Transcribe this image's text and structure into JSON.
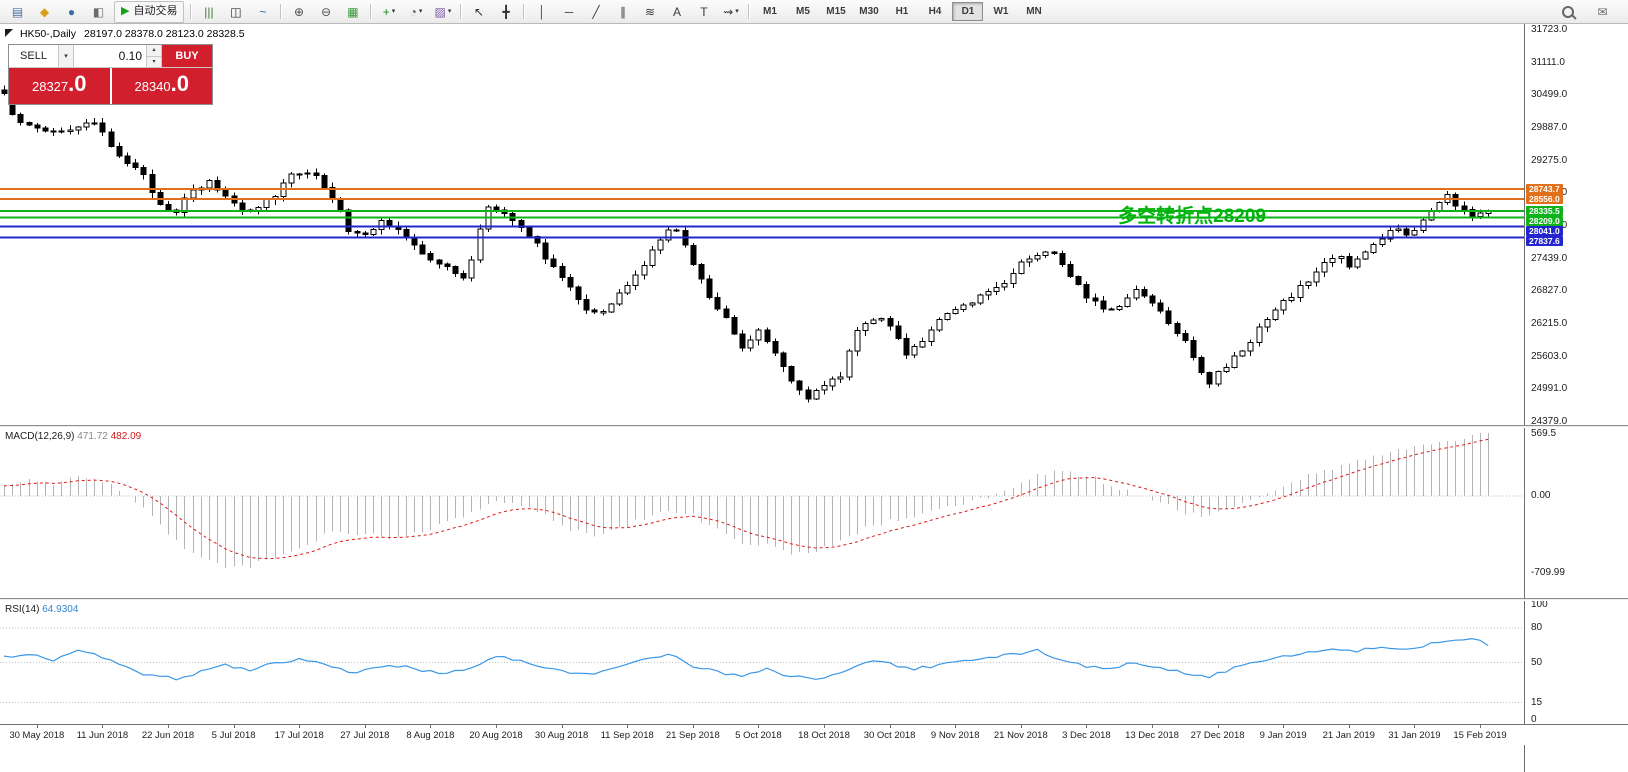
{
  "toolbar": {
    "dropdown_glyph": "▾",
    "groups": [
      {
        "name": "standard",
        "items": [
          {
            "name": "new-order-icon",
            "glyph": "▤",
            "color": "#4a6fa5"
          },
          {
            "name": "market-watch-icon",
            "glyph": "◆",
            "color": "#d9a118"
          },
          {
            "name": "navigator-icon",
            "glyph": "●",
            "color": "#3a6ea5"
          },
          {
            "name": "terminal-icon",
            "glyph": "◧",
            "color": "#6b6b6b"
          },
          {
            "name": "autotrading-button",
            "label": "自动交易",
            "glyph": "▶",
            "color": "#15a015"
          }
        ]
      },
      {
        "name": "chart-types",
        "items": [
          {
            "name": "bar-chart-icon",
            "glyph": "|||",
            "color": "#46783c"
          },
          {
            "name": "candlestick-chart-icon",
            "glyph": "◫",
            "color": "#2f2f2f"
          },
          {
            "name": "line-chart-icon",
            "glyph": "~",
            "color": "#33668c"
          }
        ]
      },
      {
        "name": "zoom",
        "items": [
          {
            "name": "zoom-in-icon",
            "glyph": "⊕",
            "color": "#4f4f4f"
          },
          {
            "name": "zoom-out-icon",
            "glyph": "⊖",
            "color": "#4f4f4f"
          },
          {
            "name": "tile-windows-icon",
            "glyph": "▦",
            "color": "#3a9a3a"
          }
        ]
      },
      {
        "name": "chart-tools",
        "items": [
          {
            "name": "indicators-icon",
            "glyph": "+",
            "color": "#1e8c1e",
            "dropdown": true
          },
          {
            "name": "periods-icon",
            "glyph": "◔",
            "color": "#4f4f4f",
            "dropdown": true
          },
          {
            "name": "templates-icon",
            "glyph": "▨",
            "color": "#7a55a0",
            "dropdown": true
          }
        ]
      },
      {
        "name": "cursor-tools",
        "items": [
          {
            "name": "cursor-icon",
            "glyph": "↖",
            "color": "#2f2f2f"
          },
          {
            "name": "crosshair-icon",
            "glyph": "╋",
            "color": "#2f2f2f"
          }
        ]
      },
      {
        "name": "drawing-tools",
        "items": [
          {
            "name": "vertical-line-icon",
            "glyph": "│",
            "color": "#3c3c3c"
          },
          {
            "name": "horizontal-line-icon",
            "glyph": "─",
            "color": "#3c3c3c"
          },
          {
            "name": "trendline-icon",
            "glyph": "╱",
            "color": "#3c3c3c"
          },
          {
            "name": "equidistant-channel-icon",
            "glyph": "∥",
            "color": "#3c3c3c"
          },
          {
            "name": "fibonacci-icon",
            "glyph": "≋",
            "color": "#3c3c3c"
          },
          {
            "name": "text-icon",
            "glyph": "A",
            "color": "#3c3c3c"
          },
          {
            "name": "text-label-icon",
            "glyph": "T",
            "color": "#3c3c3c"
          },
          {
            "name": "arrows-icon",
            "glyph": "⇝",
            "color": "#3c3c3c",
            "dropdown": true
          }
        ]
      },
      {
        "name": "timeframes",
        "timeframes": [
          "M1",
          "M5",
          "M15",
          "M30",
          "H1",
          "H4",
          "D1",
          "W1",
          "MN"
        ],
        "active": "D1"
      }
    ],
    "right_items": [
      {
        "name": "search-icon",
        "glyph": ""
      },
      {
        "name": "community-icon",
        "glyph": "✉"
      }
    ]
  },
  "chart_window": {
    "symbol_title": "HK50-,Daily",
    "ohlc_text": "28197.0 28378.0 28123.0 28328.5",
    "one_click": {
      "sell_label": "SELL",
      "buy_label": "BUY",
      "volume": "0.10",
      "sell_price_int": "28327",
      "sell_price_frac": ".0",
      "buy_price_int": "28340",
      "buy_price_frac": ".0",
      "dropdown_glyph": "▾",
      "spin_up_glyph": "▴",
      "spin_down_glyph": "▾"
    }
  },
  "chart_data": {
    "type": "candlestick",
    "symbol": "HK50-",
    "timeframe": "Daily",
    "bars": 182,
    "y_range": [
      24379,
      31723
    ],
    "price_axis_ticks": [
      "31723.0",
      "31111.0",
      "30499.0",
      "29887.0",
      "29275.0",
      "28663.0",
      "28051.0",
      "27439.0",
      "26827.0",
      "26215.0",
      "25603.0",
      "24991.0",
      "24379.0"
    ],
    "time_axis": [
      "30 May 2018",
      "11 Jun 2018",
      "22 Jun 2018",
      "5 Jul 2018",
      "17 Jul 2018",
      "27 Jul 2018",
      "8 Aug 2018",
      "20 Aug 2018",
      "30 Aug 2018",
      "11 Sep 2018",
      "21 Sep 2018",
      "5 Oct 2018",
      "18 Oct 2018",
      "30 Oct 2018",
      "9 Nov 2018",
      "21 Nov 2018",
      "3 Dec 2018",
      "13 Dec 2018",
      "27 Dec 2018",
      "9 Jan 2019",
      "21 Jan 2019",
      "31 Jan 2019",
      "15 Feb 2019"
    ],
    "levels": [
      {
        "price": 28743.7,
        "label": "28743.7",
        "color": "#e0701c"
      },
      {
        "price": 28556.0,
        "label": "28556.0",
        "color": "#e0701c"
      },
      {
        "price": 28335.5,
        "label": "28335.5",
        "color": "#10b21c"
      },
      {
        "price": 28209.0,
        "label": "28209.0",
        "color": "#10b21c"
      },
      {
        "price": 28041.0,
        "label": "28041.0",
        "color": "#2525cf"
      },
      {
        "price": 27837.6,
        "label": "27837.6",
        "color": "#2525cf"
      }
    ],
    "annotation": {
      "text": "多空转折点28209",
      "color": "#00b40c"
    },
    "price_anchors": [
      [
        0,
        30480
      ],
      [
        1,
        30180
      ],
      [
        3,
        29900
      ],
      [
        6,
        29820
      ],
      [
        9,
        29900
      ],
      [
        11,
        29960
      ],
      [
        13,
        29560
      ],
      [
        15,
        29260
      ],
      [
        17,
        28960
      ],
      [
        19,
        28460
      ],
      [
        21,
        28340
      ],
      [
        23,
        28700
      ],
      [
        25,
        28860
      ],
      [
        27,
        28620
      ],
      [
        29,
        28360
      ],
      [
        31,
        28420
      ],
      [
        33,
        28660
      ],
      [
        35,
        29040
      ],
      [
        37,
        29080
      ],
      [
        39,
        28820
      ],
      [
        41,
        28380
      ],
      [
        42,
        27920
      ],
      [
        44,
        27860
      ],
      [
        46,
        28140
      ],
      [
        48,
        27960
      ],
      [
        50,
        27660
      ],
      [
        52,
        27460
      ],
      [
        54,
        27260
      ],
      [
        56,
        27060
      ],
      [
        57,
        27400
      ],
      [
        58,
        28020
      ],
      [
        59,
        28420
      ],
      [
        61,
        28320
      ],
      [
        63,
        28060
      ],
      [
        65,
        27700
      ],
      [
        67,
        27260
      ],
      [
        69,
        26920
      ],
      [
        71,
        26520
      ],
      [
        73,
        26420
      ],
      [
        75,
        26760
      ],
      [
        77,
        27120
      ],
      [
        79,
        27560
      ],
      [
        81,
        27960
      ],
      [
        82,
        28020
      ],
      [
        84,
        27320
      ],
      [
        86,
        26720
      ],
      [
        88,
        26360
      ],
      [
        90,
        25760
      ],
      [
        92,
        26120
      ],
      [
        94,
        25720
      ],
      [
        96,
        25160
      ],
      [
        98,
        24860
      ],
      [
        100,
        25020
      ],
      [
        102,
        25260
      ],
      [
        104,
        26140
      ],
      [
        106,
        26320
      ],
      [
        108,
        26200
      ],
      [
        110,
        25680
      ],
      [
        112,
        25920
      ],
      [
        114,
        26260
      ],
      [
        116,
        26460
      ],
      [
        118,
        26660
      ],
      [
        120,
        26820
      ],
      [
        122,
        27020
      ],
      [
        124,
        27360
      ],
      [
        126,
        27520
      ],
      [
        128,
        27560
      ],
      [
        130,
        27160
      ],
      [
        132,
        26760
      ],
      [
        134,
        26460
      ],
      [
        136,
        26560
      ],
      [
        138,
        26860
      ],
      [
        140,
        26660
      ],
      [
        142,
        26260
      ],
      [
        144,
        25920
      ],
      [
        146,
        25320
      ],
      [
        147,
        25120
      ],
      [
        149,
        25420
      ],
      [
        151,
        25720
      ],
      [
        153,
        26120
      ],
      [
        155,
        26460
      ],
      [
        157,
        26760
      ],
      [
        159,
        27020
      ],
      [
        161,
        27360
      ],
      [
        163,
        27520
      ],
      [
        164,
        27260
      ],
      [
        166,
        27560
      ],
      [
        168,
        27820
      ],
      [
        170,
        28020
      ],
      [
        171,
        27860
      ],
      [
        173,
        28160
      ],
      [
        175,
        28520
      ],
      [
        176,
        28660
      ],
      [
        177,
        28420
      ],
      [
        179,
        28260
      ],
      [
        181,
        28328
      ]
    ],
    "indicators": [
      {
        "name": "MACD",
        "label": "MACD(12,26,9)",
        "values": [
          "471.72",
          "482.09"
        ],
        "axis_labels": [
          "569.5",
          "0.00",
          "-709.99"
        ],
        "histogram_color": "#b4b4b4",
        "signal_color": "#e01919",
        "histogram_anchors": [
          [
            0,
            110
          ],
          [
            3,
            150
          ],
          [
            6,
            120
          ],
          [
            9,
            160
          ],
          [
            12,
            140
          ],
          [
            15,
            20
          ],
          [
            18,
            -180
          ],
          [
            21,
            -420
          ],
          [
            24,
            -560
          ],
          [
            27,
            -640
          ],
          [
            30,
            -650
          ],
          [
            33,
            -560
          ],
          [
            36,
            -470
          ],
          [
            39,
            -360
          ],
          [
            42,
            -330
          ],
          [
            45,
            -360
          ],
          [
            48,
            -390
          ],
          [
            51,
            -330
          ],
          [
            54,
            -250
          ],
          [
            57,
            -160
          ],
          [
            60,
            -60
          ],
          [
            63,
            -80
          ],
          [
            66,
            -180
          ],
          [
            69,
            -300
          ],
          [
            72,
            -360
          ],
          [
            75,
            -310
          ],
          [
            78,
            -200
          ],
          [
            81,
            -120
          ],
          [
            84,
            -180
          ],
          [
            87,
            -320
          ],
          [
            90,
            -420
          ],
          [
            93,
            -450
          ],
          [
            96,
            -520
          ],
          [
            99,
            -500
          ],
          [
            102,
            -420
          ],
          [
            105,
            -300
          ],
          [
            108,
            -230
          ],
          [
            111,
            -190
          ],
          [
            114,
            -120
          ],
          [
            117,
            -60
          ],
          [
            120,
            -10
          ],
          [
            123,
            90
          ],
          [
            126,
            190
          ],
          [
            129,
            230
          ],
          [
            132,
            190
          ],
          [
            135,
            90
          ],
          [
            138,
            20
          ],
          [
            141,
            -60
          ],
          [
            144,
            -150
          ],
          [
            146,
            -190
          ],
          [
            148,
            -140
          ],
          [
            151,
            -60
          ],
          [
            154,
            40
          ],
          [
            157,
            130
          ],
          [
            160,
            210
          ],
          [
            163,
            280
          ],
          [
            166,
            340
          ],
          [
            169,
            400
          ],
          [
            172,
            450
          ],
          [
            175,
            500
          ],
          [
            178,
            540
          ],
          [
            181,
            568
          ]
        ]
      },
      {
        "name": "RSI",
        "label": "RSI(14)",
        "value": "64.9304",
        "line_color": "#3b97e8",
        "levels": [
          80,
          50,
          15
        ],
        "axis_labels": [
          "100",
          "80",
          "50",
          "15",
          "0"
        ],
        "line_anchors": [
          [
            0,
            55
          ],
          [
            3,
            58
          ],
          [
            6,
            52
          ],
          [
            9,
            60
          ],
          [
            12,
            55
          ],
          [
            15,
            45
          ],
          [
            18,
            38
          ],
          [
            21,
            36
          ],
          [
            24,
            42
          ],
          [
            27,
            48
          ],
          [
            30,
            44
          ],
          [
            33,
            50
          ],
          [
            36,
            53
          ],
          [
            39,
            49
          ],
          [
            42,
            41
          ],
          [
            45,
            44
          ],
          [
            48,
            47
          ],
          [
            51,
            43
          ],
          [
            54,
            40
          ],
          [
            57,
            46
          ],
          [
            60,
            55
          ],
          [
            63,
            52
          ],
          [
            66,
            46
          ],
          [
            69,
            41
          ],
          [
            72,
            39
          ],
          [
            75,
            46
          ],
          [
            78,
            52
          ],
          [
            81,
            58
          ],
          [
            84,
            47
          ],
          [
            87,
            42
          ],
          [
            90,
            38
          ],
          [
            93,
            44
          ],
          [
            96,
            38
          ],
          [
            99,
            36
          ],
          [
            102,
            40
          ],
          [
            105,
            51
          ],
          [
            108,
            49
          ],
          [
            111,
            44
          ],
          [
            114,
            48
          ],
          [
            117,
            52
          ],
          [
            120,
            55
          ],
          [
            123,
            57
          ],
          [
            126,
            60
          ],
          [
            129,
            53
          ],
          [
            132,
            47
          ],
          [
            135,
            45
          ],
          [
            138,
            50
          ],
          [
            141,
            46
          ],
          [
            144,
            40
          ],
          [
            147,
            38
          ],
          [
            150,
            45
          ],
          [
            153,
            52
          ],
          [
            156,
            56
          ],
          [
            159,
            59
          ],
          [
            162,
            62
          ],
          [
            165,
            60
          ],
          [
            168,
            63
          ],
          [
            171,
            62
          ],
          [
            174,
            66
          ],
          [
            177,
            70
          ],
          [
            179,
            71
          ],
          [
            181,
            65
          ]
        ]
      }
    ]
  }
}
